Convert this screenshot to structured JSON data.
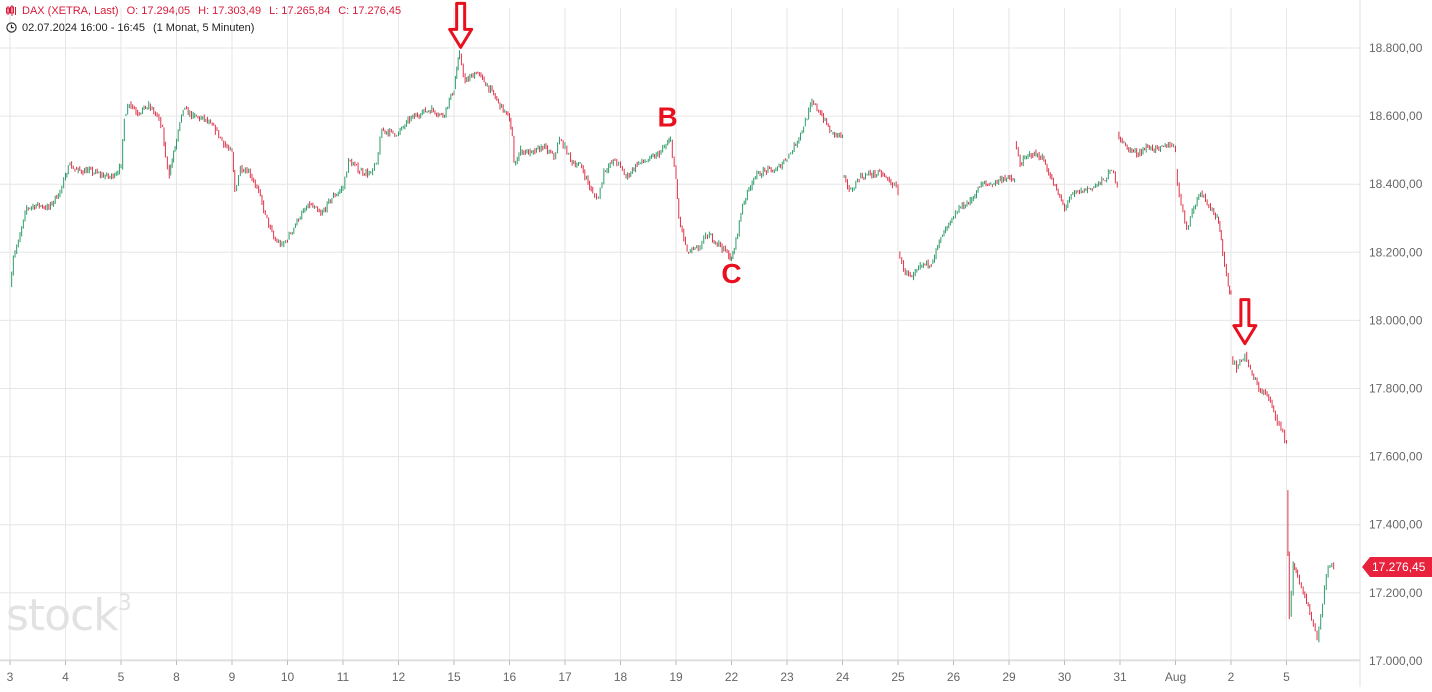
{
  "header": {
    "instrument": "DAX (XETRA, Last)",
    "open_label": "O:",
    "open": "17.294,05",
    "high_label": "H:",
    "high": "17.303,49",
    "low_label": "L:",
    "low": "17.265,84",
    "close_label": "C:",
    "close": "17.276,45",
    "period": "02.07.2024 16:00 - 16:45",
    "interval": "(1 Monat, 5 Minuten)"
  },
  "watermark": {
    "text": "stock",
    "sup": "3"
  },
  "colors": {
    "up": "#2e9c6a",
    "down": "#e0334a",
    "grid": "#e6e6e6",
    "annotation": "#e8101e",
    "price_tag": "#e8213d"
  },
  "chart_data": {
    "type": "candlestick",
    "title": "",
    "xlabel": "",
    "ylabel": "",
    "y_axis_side": "right",
    "ylim": [
      16960,
      18900
    ],
    "yticks": [
      17000,
      17200,
      17400,
      17600,
      17800,
      18000,
      18200,
      18400,
      18600,
      18800
    ],
    "ytick_labels": [
      "17.000,00",
      "17.200,00",
      "17.400,00",
      "17.600,00",
      "17.800,00",
      "18.000,00",
      "18.200,00",
      "18.400,00",
      "18.600,00",
      "18.800,00"
    ],
    "grid": true,
    "categories": [
      "3",
      "4",
      "5",
      "8",
      "9",
      "10",
      "11",
      "12",
      "15",
      "16",
      "17",
      "18",
      "19",
      "22",
      "23",
      "24",
      "25",
      "26",
      "29",
      "30",
      "31",
      "Aug",
      "2",
      "5"
    ],
    "session_path": [
      [
        [
          0,
          18100
        ],
        [
          0.06,
          18190
        ],
        [
          0.15,
          18230
        ],
        [
          0.3,
          18330
        ],
        [
          0.5,
          18340
        ],
        [
          0.7,
          18330
        ],
        [
          0.9,
          18380
        ],
        [
          1.0,
          18420
        ]
      ],
      [
        [
          1.0,
          18420
        ],
        [
          1.05,
          18460
        ],
        [
          1.2,
          18440
        ],
        [
          1.4,
          18440
        ],
        [
          1.6,
          18430
        ],
        [
          1.8,
          18420
        ],
        [
          2.0,
          18450
        ]
      ],
      [
        [
          2.0,
          18450
        ],
        [
          2.06,
          18600
        ],
        [
          2.15,
          18640
        ],
        [
          2.3,
          18610
        ],
        [
          2.5,
          18630
        ],
        [
          2.65,
          18600
        ],
        [
          2.75,
          18560
        ],
        [
          2.8,
          18480
        ],
        [
          2.87,
          18430
        ]
      ],
      [
        [
          2.87,
          18430
        ],
        [
          3.0,
          18530
        ],
        [
          3.12,
          18620
        ],
        [
          3.3,
          18600
        ],
        [
          3.5,
          18590
        ],
        [
          3.7,
          18560
        ],
        [
          3.85,
          18520
        ],
        [
          4.0,
          18490
        ]
      ],
      [
        [
          4.0,
          18490
        ],
        [
          4.05,
          18380
        ],
        [
          4.15,
          18450
        ],
        [
          4.3,
          18440
        ],
        [
          4.45,
          18390
        ],
        [
          4.6,
          18310
        ],
        [
          4.75,
          18240
        ],
        [
          4.9,
          18220
        ],
        [
          5.0,
          18240
        ]
      ],
      [
        [
          5.0,
          18240
        ],
        [
          5.2,
          18300
        ],
        [
          5.4,
          18340
        ],
        [
          5.6,
          18310
        ],
        [
          5.8,
          18360
        ],
        [
          6.0,
          18390
        ]
      ],
      [
        [
          6.0,
          18390
        ],
        [
          6.1,
          18470
        ],
        [
          6.3,
          18440
        ],
        [
          6.5,
          18430
        ],
        [
          6.6,
          18460
        ],
        [
          6.7,
          18560
        ],
        [
          6.9,
          18550
        ],
        [
          7.0,
          18550
        ]
      ],
      [
        [
          7.0,
          18550
        ],
        [
          7.2,
          18590
        ],
        [
          7.4,
          18610
        ],
        [
          7.6,
          18620
        ],
        [
          7.8,
          18600
        ],
        [
          8.0,
          18680
        ],
        [
          8.05,
          18740
        ],
        [
          8.1,
          18780
        ]
      ],
      [
        [
          8.1,
          18780
        ],
        [
          8.2,
          18700
        ],
        [
          8.4,
          18730
        ],
        [
          8.6,
          18690
        ],
        [
          8.8,
          18640
        ],
        [
          9.0,
          18590
        ],
        [
          9.05,
          18540
        ]
      ],
      [
        [
          9.05,
          18540
        ],
        [
          9.08,
          18460
        ],
        [
          9.2,
          18500
        ],
        [
          9.4,
          18490
        ],
        [
          9.6,
          18510
        ],
        [
          9.8,
          18480
        ],
        [
          9.9,
          18530
        ],
        [
          10.0,
          18510
        ]
      ],
      [
        [
          10.0,
          18510
        ],
        [
          10.1,
          18470
        ],
        [
          10.3,
          18450
        ],
        [
          10.5,
          18370
        ],
        [
          10.6,
          18360
        ],
        [
          10.7,
          18440
        ],
        [
          10.9,
          18470
        ],
        [
          11.0,
          18450
        ]
      ],
      [
        [
          11.0,
          18450
        ],
        [
          11.1,
          18420
        ],
        [
          11.3,
          18460
        ],
        [
          11.5,
          18470
        ],
        [
          11.7,
          18490
        ],
        [
          11.85,
          18520
        ],
        [
          11.9,
          18530
        ]
      ],
      [
        [
          11.9,
          18530
        ],
        [
          12.0,
          18410
        ],
        [
          12.05,
          18300
        ],
        [
          12.2,
          18200
        ],
        [
          12.4,
          18210
        ],
        [
          12.5,
          18240
        ],
        [
          12.6,
          18250
        ],
        [
          12.8,
          18220
        ],
        [
          12.95,
          18190
        ],
        [
          13.0,
          18180
        ]
      ],
      [
        [
          13.0,
          18180
        ],
        [
          13.05,
          18210
        ],
        [
          13.2,
          18340
        ],
        [
          13.4,
          18420
        ],
        [
          13.6,
          18440
        ],
        [
          13.8,
          18440
        ],
        [
          14.0,
          18480
        ]
      ],
      [
        [
          14.0,
          18480
        ],
        [
          14.1,
          18500
        ],
        [
          14.3,
          18570
        ],
        [
          14.45,
          18640
        ],
        [
          14.6,
          18610
        ],
        [
          14.8,
          18550
        ],
        [
          15.0,
          18540
        ]
      ],
      [
        [
          15.0,
          18420
        ],
        [
          15.15,
          18380
        ],
        [
          15.3,
          18420
        ],
        [
          15.5,
          18430
        ],
        [
          15.7,
          18430
        ],
        [
          15.9,
          18400
        ],
        [
          16.0,
          18380
        ]
      ],
      [
        [
          16.0,
          18200
        ],
        [
          16.1,
          18150
        ],
        [
          16.25,
          18120
        ],
        [
          16.4,
          18160
        ],
        [
          16.6,
          18170
        ],
        [
          16.8,
          18250
        ],
        [
          17.0,
          18300
        ]
      ],
      [
        [
          17.0,
          18300
        ],
        [
          17.1,
          18330
        ],
        [
          17.3,
          18350
        ],
        [
          17.5,
          18400
        ],
        [
          17.7,
          18400
        ],
        [
          17.9,
          18420
        ],
        [
          18.1,
          18410
        ]
      ],
      [
        [
          18.1,
          18520
        ],
        [
          18.2,
          18460
        ],
        [
          18.4,
          18490
        ],
        [
          18.6,
          18480
        ],
        [
          18.8,
          18400
        ],
        [
          19.0,
          18330
        ]
      ],
      [
        [
          19.0,
          18330
        ],
        [
          19.15,
          18370
        ],
        [
          19.3,
          18380
        ],
        [
          19.5,
          18390
        ],
        [
          19.7,
          18410
        ],
        [
          19.85,
          18440
        ],
        [
          19.95,
          18400
        ]
      ],
      [
        [
          19.95,
          18550
        ],
        [
          20.1,
          18510
        ],
        [
          20.3,
          18490
        ],
        [
          20.5,
          18510
        ],
        [
          20.7,
          18500
        ],
        [
          20.9,
          18520
        ],
        [
          21.0,
          18500
        ]
      ],
      [
        [
          21.0,
          18440
        ],
        [
          21.1,
          18340
        ],
        [
          21.2,
          18270
        ],
        [
          21.3,
          18320
        ],
        [
          21.45,
          18380
        ],
        [
          21.6,
          18340
        ],
        [
          21.75,
          18300
        ],
        [
          21.8,
          18260
        ],
        [
          21.85,
          18200
        ],
        [
          21.95,
          18100
        ],
        [
          22.0,
          18080
        ]
      ],
      [
        [
          22.0,
          17890
        ],
        [
          22.1,
          17860
        ],
        [
          22.25,
          17900
        ],
        [
          22.35,
          17850
        ],
        [
          22.5,
          17800
        ],
        [
          22.65,
          17780
        ],
        [
          22.8,
          17720
        ],
        [
          22.9,
          17680
        ],
        [
          23.0,
          17640
        ]
      ],
      [
        [
          23.0,
          17500
        ],
        [
          23.05,
          17130
        ],
        [
          23.12,
          17280
        ],
        [
          23.2,
          17250
        ],
        [
          23.3,
          17200
        ],
        [
          23.45,
          17120
        ],
        [
          23.55,
          17060
        ],
        [
          23.65,
          17170
        ],
        [
          23.75,
          17280
        ],
        [
          23.85,
          17280
        ]
      ]
    ],
    "last_price": 17276.45,
    "last_price_label": "17.276,45",
    "annotations": [
      {
        "type": "arrow-down",
        "x": 8.12,
        "y": 18790
      },
      {
        "type": "label",
        "text": "B",
        "x": 11.85,
        "y": 18570
      },
      {
        "type": "label",
        "text": "C",
        "x": 13.0,
        "y": 18110
      },
      {
        "type": "arrow-down",
        "x": 22.25,
        "y": 17920
      }
    ]
  }
}
